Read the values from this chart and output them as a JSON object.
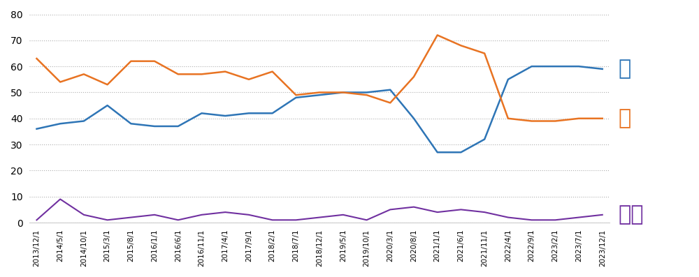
{
  "x_labels": [
    "2013/12/1",
    "2014/5/1",
    "2014/10/1",
    "2015/3/1",
    "2015/8/1",
    "2016/1/1",
    "2016/6/1",
    "2016/11/1",
    "2017/4/1",
    "2017/9/1",
    "2018/2/1",
    "2018/7/1",
    "2018/12/1",
    "2019/5/1",
    "2019/10/1",
    "2020/3/1",
    "2020/8/1",
    "2021/1/1",
    "2021/6/1",
    "2021/11/1",
    "2022/4/1",
    "2022/9/1",
    "2023/2/1",
    "2023/7/1",
    "2023/12/1"
  ],
  "bond": [
    36,
    38,
    39,
    45,
    38,
    37,
    37,
    42,
    41,
    42,
    42,
    48,
    49,
    50,
    50,
    51,
    40,
    27,
    27,
    32,
    55,
    60,
    60,
    60,
    59
  ],
  "stock": [
    63,
    54,
    57,
    53,
    62,
    62,
    57,
    57,
    58,
    55,
    58,
    49,
    50,
    50,
    49,
    46,
    56,
    72,
    68,
    65,
    40,
    39,
    39,
    40,
    40
  ],
  "cash": [
    1,
    9,
    3,
    1,
    2,
    3,
    1,
    3,
    4,
    3,
    1,
    1,
    2,
    3,
    1,
    5,
    6,
    4,
    5,
    4,
    2,
    1,
    1,
    2,
    3
  ],
  "bond_color": "#2E75B6",
  "stock_color": "#E87322",
  "cash_color": "#7030A0",
  "ylim": [
    0,
    80
  ],
  "yticks": [
    0,
    10,
    20,
    30,
    40,
    50,
    60,
    70,
    80
  ],
  "label_bond": "債",
  "label_stock": "股",
  "label_cash": "現金",
  "bg_color": "#ffffff",
  "grid_color": "#b0b0b0"
}
